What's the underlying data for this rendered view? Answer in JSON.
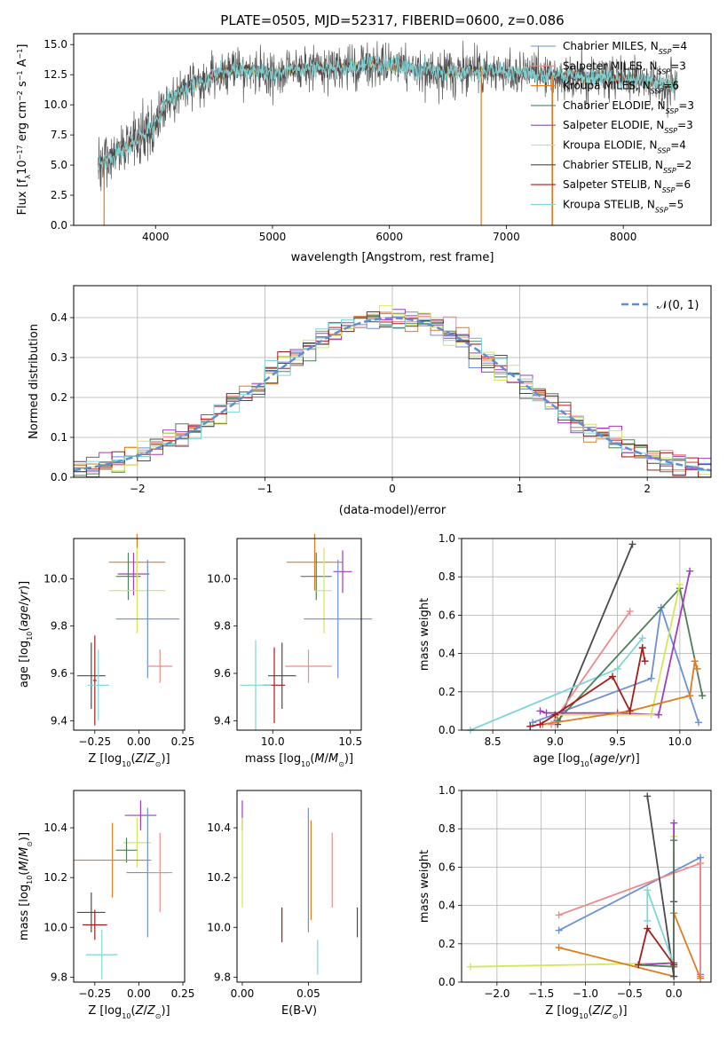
{
  "chart_data": [
    {
      "id": "spectrum",
      "type": "line",
      "title": "PLATE=0505, MJD=52317, FIBERID=0600, z=0.086",
      "xlabel": "wavelength [Angstrom, rest frame]",
      "ylabel": "Flux [f_λ10^-17 erg cm^-2 s^-1 A^-1]",
      "xlim": [
        3300,
        8750
      ],
      "ylim": [
        0,
        15.9
      ],
      "xticks": [
        4000,
        5000,
        6000,
        7000,
        8000
      ],
      "yticks": [
        0.0,
        2.5,
        5.0,
        7.5,
        10.0,
        12.5,
        15.0
      ],
      "x_range": [
        3510,
        8460
      ],
      "legend_position": "top-right",
      "series": [
        {
          "name": "Chabrier MILES, N_SSP=4",
          "color": "#6c8fd5",
          "dataset": "MILES"
        },
        {
          "name": "Salpeter MILES, N_SSP=3",
          "color": "#ee8a8a",
          "dataset": "MILES"
        },
        {
          "name": "Kroupa MILES, N_SSP=6",
          "color": "#e07b20",
          "dataset": "MILES"
        },
        {
          "name": "Chabrier ELODIE, N_SSP=3",
          "color": "#4f7e5a",
          "dataset": "ELODIE"
        },
        {
          "name": "Salpeter ELODIE, N_SSP=3",
          "color": "#a13bc0",
          "dataset": "ELODIE"
        },
        {
          "name": "Kroupa ELODIE, N_SSP=4",
          "color": "#d4e65a",
          "dataset": "ELODIE"
        },
        {
          "name": "Chabrier STELIB, N_SSP=2",
          "color": "#4a4a4a",
          "dataset": "STELIB"
        },
        {
          "name": "Salpeter STELIB, N_SSP=6",
          "color": "#a61c1c",
          "dataset": "STELIB"
        },
        {
          "name": "Kroupa STELIB, N_SSP=5",
          "color": "#7fd6d6",
          "dataset": "STELIB"
        }
      ],
      "continuum": {
        "x": [
          3510,
          3700,
          3900,
          4000,
          4100,
          4300,
          4500,
          4800,
          5000,
          5300,
          5600,
          5900,
          6200,
          6500,
          6800,
          7100,
          7400,
          7700,
          8000,
          8200,
          8460
        ],
        "y": [
          5.0,
          6.2,
          7.5,
          8.3,
          10.4,
          11.6,
          12.5,
          12.9,
          12.6,
          13.0,
          13.1,
          13.4,
          13.0,
          12.7,
          12.8,
          12.6,
          12.4,
          12.3,
          12.2,
          11.9,
          11.6
        ]
      },
      "spikes": [
        {
          "x": 3560,
          "y0": 0.0,
          "color": "#e07b20"
        },
        {
          "x": 6785,
          "y0": 0.0,
          "color": "#e07b20"
        },
        {
          "x": 7390,
          "y0": 0.0,
          "color": "#ee8a8a"
        },
        {
          "x": 7395,
          "y0": 0.0,
          "color": "#e07b20"
        }
      ]
    },
    {
      "id": "residuals",
      "type": "histogram",
      "xlabel": "(data-model)/error",
      "ylabel": "Normed distribution",
      "xlim": [
        -2.5,
        2.5
      ],
      "ylim": [
        0,
        0.48
      ],
      "xticks": [
        -2,
        -1,
        0,
        1,
        2
      ],
      "yticks": [
        0.0,
        0.1,
        0.2,
        0.3,
        0.4
      ],
      "grid": true,
      "bin_width": 0.1,
      "legend": "𝒩(0, 1)",
      "legend_position": "top-right",
      "gaussian_color": "#5e8ed6",
      "series_colors": [
        "#6c8fd5",
        "#ee8a8a",
        "#e07b20",
        "#4f7e5a",
        "#a13bc0",
        "#d4e65a",
        "#4a4a4a",
        "#a61c1c",
        "#7fd6d6"
      ]
    },
    {
      "id": "age-vs-Z",
      "type": "errorbar",
      "xlabel": "Z [log10(Z/Z⊙)]",
      "ylabel": "age  [log10(age/yr)]",
      "xlim": [
        -0.37,
        0.26
      ],
      "ylim": [
        9.36,
        10.17
      ],
      "xticks": [
        -0.25,
        0.0,
        0.25
      ],
      "xticklabels": [
        "−0.25",
        "0.00",
        "0.25"
      ],
      "yticks": [
        9.4,
        9.6,
        9.8,
        10.0
      ],
      "points": [
        {
          "x": -0.01,
          "xerr": 0.16,
          "y": 10.07,
          "yerr": 0.12,
          "color": "#e07b20"
        },
        {
          "x": -0.03,
          "xerr": 0.09,
          "y": 10.02,
          "yerr": 0.09,
          "color": "#a13bc0"
        },
        {
          "x": -0.06,
          "xerr": 0.07,
          "y": 10.01,
          "yerr": 0.1,
          "color": "#4f7e5a"
        },
        {
          "x": -0.01,
          "xerr": 0.16,
          "y": 9.95,
          "yerr": 0.18,
          "color": "#d4e65a"
        },
        {
          "x": 0.05,
          "xerr": 0.18,
          "y": 9.83,
          "yerr": 0.25,
          "color": "#6c8fd5"
        },
        {
          "x": 0.12,
          "xerr": 0.07,
          "y": 9.63,
          "yerr": 0.07,
          "color": "#ee8a8a"
        },
        {
          "x": -0.27,
          "xerr": 0.08,
          "y": 9.59,
          "yerr": 0.14,
          "color": "#4a4a4a"
        },
        {
          "x": -0.25,
          "xerr": 0.01,
          "y": 9.57,
          "yerr": 0.19,
          "color": "#a61c1c"
        },
        {
          "x": -0.23,
          "xerr": 0.06,
          "y": 9.55,
          "yerr": 0.15,
          "color": "#7fd6d6"
        }
      ]
    },
    {
      "id": "age-vs-mass",
      "type": "errorbar",
      "xlabel": "mass [log10(M/M⊙)]",
      "ylabel": "",
      "xlim": [
        9.77,
        10.57
      ],
      "ylim": [
        9.36,
        10.17
      ],
      "xticks": [
        10.0,
        10.5
      ],
      "yticks": [
        9.4,
        9.6,
        9.8,
        10.0
      ],
      "points": [
        {
          "x": 10.27,
          "xerr": 0.18,
          "y": 10.07,
          "yerr": 0.12,
          "color": "#e07b20"
        },
        {
          "x": 10.45,
          "xerr": 0.06,
          "y": 10.03,
          "yerr": 0.09,
          "color": "#a13bc0"
        },
        {
          "x": 10.28,
          "xerr": 0.1,
          "y": 10.01,
          "yerr": 0.1,
          "color": "#4f7e5a"
        },
        {
          "x": 10.33,
          "xerr": 0.05,
          "y": 9.95,
          "yerr": 0.18,
          "color": "#d4e65a"
        },
        {
          "x": 10.42,
          "xerr": 0.22,
          "y": 9.83,
          "yerr": 0.25,
          "color": "#6c8fd5"
        },
        {
          "x": 10.23,
          "xerr": 0.15,
          "y": 9.63,
          "yerr": 0.07,
          "color": "#ee8a8a"
        },
        {
          "x": 10.06,
          "xerr": 0.09,
          "y": 9.59,
          "yerr": 0.14,
          "color": "#4a4a4a"
        },
        {
          "x": 10.01,
          "xerr": 0.07,
          "y": 9.55,
          "yerr": 0.16,
          "color": "#a61c1c"
        },
        {
          "x": 9.89,
          "xerr": 0.1,
          "y": 9.55,
          "yerr": 0.19,
          "color": "#7fd6d6"
        }
      ]
    },
    {
      "id": "mass-weight-vs-age",
      "type": "line",
      "xlabel": "age  [log10(age/yr)]",
      "ylabel": "mass weight",
      "xlim": [
        8.25,
        10.25
      ],
      "ylim": [
        0.0,
        1.0
      ],
      "xticks": [
        8.5,
        9.0,
        9.5,
        10.0
      ],
      "yticks": [
        0.0,
        0.2,
        0.4,
        0.6,
        0.8,
        1.0
      ],
      "grid": true,
      "series": [
        {
          "color": "#4a4a4a",
          "x": [
            9.02,
            9.62
          ],
          "y": [
            0.03,
            0.97
          ]
        },
        {
          "color": "#ee8a8a",
          "x": [
            8.97,
            9.6
          ],
          "y": [
            0.03,
            0.62
          ]
        },
        {
          "color": "#6c8fd5",
          "x": [
            8.82,
            9.77,
            9.85,
            10.15
          ],
          "y": [
            0.04,
            0.27,
            0.64,
            0.04
          ]
        },
        {
          "color": "#7fd6d6",
          "x": [
            8.32,
            9.5,
            9.7
          ],
          "y": [
            0.0,
            0.32,
            0.48
          ]
        },
        {
          "color": "#4f7e5a",
          "x": [
            9.02,
            10.0,
            10.18
          ],
          "y": [
            0.05,
            0.74,
            0.18
          ]
        },
        {
          "color": "#a13bc0",
          "x": [
            8.88,
            8.93,
            9.5,
            9.83,
            10.08
          ],
          "y": [
            0.1,
            0.09,
            0.09,
            0.08,
            0.83
          ]
        },
        {
          "color": "#d4e65a",
          "x": [
            9.0,
            9.77,
            10.0
          ],
          "y": [
            0.08,
            0.08,
            0.76
          ]
        },
        {
          "color": "#e07b20",
          "x": [
            8.9,
            9.6,
            10.08,
            10.12,
            10.14
          ],
          "y": [
            0.03,
            0.1,
            0.18,
            0.36,
            0.32
          ]
        },
        {
          "color": "#a61c1c",
          "x": [
            8.8,
            8.88,
            9.0,
            9.46,
            9.6,
            9.7,
            9.72
          ],
          "y": [
            0.02,
            0.03,
            0.08,
            0.28,
            0.1,
            0.43,
            0.36
          ]
        }
      ]
    },
    {
      "id": "mass-vs-Z",
      "type": "errorbar",
      "xlabel": "Z [log10(Z/Z⊙)]",
      "ylabel": "mass [log10(M/M⊙)]",
      "xlim": [
        -0.37,
        0.26
      ],
      "ylim": [
        9.78,
        10.55
      ],
      "xticks": [
        -0.25,
        0.0,
        0.25
      ],
      "xticklabels": [
        "−0.25",
        "0.00",
        "0.25"
      ],
      "yticks": [
        9.8,
        10.0,
        10.2,
        10.4
      ],
      "points": [
        {
          "x": 0.01,
          "xerr": 0.09,
          "y": 10.45,
          "yerr": 0.06,
          "color": "#a13bc0"
        },
        {
          "x": -0.01,
          "xerr": 0.08,
          "y": 10.34,
          "yerr": 0.1,
          "color": "#d4e65a"
        },
        {
          "x": -0.07,
          "xerr": 0.06,
          "y": 10.31,
          "yerr": 0.05,
          "color": "#4f7e5a"
        },
        {
          "x": -0.15,
          "xerr": 0.22,
          "y": 10.27,
          "yerr": 0.15,
          "color": "#e07b20"
        },
        {
          "x": 0.05,
          "xerr": 0.12,
          "y": 10.22,
          "yerr": 0.26,
          "color": "#6c8fd5"
        },
        {
          "x": 0.12,
          "xerr": 0.07,
          "y": 10.22,
          "yerr": 0.16,
          "color": "#ee8a8a"
        },
        {
          "x": -0.27,
          "xerr": 0.08,
          "y": 10.06,
          "yerr": 0.08,
          "color": "#4a4a4a"
        },
        {
          "x": -0.25,
          "xerr": 0.07,
          "y": 10.01,
          "yerr": 0.06,
          "color": "#a61c1c"
        },
        {
          "x": -0.21,
          "xerr": 0.09,
          "y": 9.89,
          "yerr": 0.1,
          "color": "#7fd6d6"
        }
      ]
    },
    {
      "id": "mass-vs-EBV",
      "type": "errorbar",
      "xlabel": "E(B-V)",
      "ylabel": "",
      "xlim": [
        -0.004,
        0.09
      ],
      "ylim": [
        9.78,
        10.55
      ],
      "xticks": [
        0.0,
        0.05
      ],
      "xticklabels": [
        "0.00",
        "0.05"
      ],
      "yticks": [
        9.8,
        10.0,
        10.2,
        10.4
      ],
      "points": [
        {
          "x": 0.0,
          "xerr": 0.0,
          "y": 10.45,
          "yerr": 0.06,
          "color": "#a13bc0"
        },
        {
          "x": 0.0,
          "xerr": 0.0,
          "y": 10.26,
          "yerr": 0.18,
          "color": "#d4e65a"
        },
        {
          "x": 0.05,
          "xerr": 0.0,
          "y": 10.23,
          "yerr": 0.25,
          "color": "#6c8fd5"
        },
        {
          "x": 0.052,
          "xerr": 0.0,
          "y": 10.23,
          "yerr": 0.2,
          "color": "#e07b20"
        },
        {
          "x": 0.068,
          "xerr": 0.0,
          "y": 10.23,
          "yerr": 0.15,
          "color": "#ee8a8a"
        },
        {
          "x": 0.03,
          "xerr": 0.0,
          "y": 10.01,
          "yerr": 0.07,
          "color": "#a61c1c"
        },
        {
          "x": 0.087,
          "xerr": 0.0,
          "y": 10.02,
          "yerr": 0.06,
          "color": "#4a4a4a"
        },
        {
          "x": 0.057,
          "xerr": 0.0,
          "y": 9.88,
          "yerr": 0.07,
          "color": "#7fd6d6"
        }
      ]
    },
    {
      "id": "mass-weight-vs-Z",
      "type": "line",
      "xlabel": "Z [log10(Z/Z⊙)]",
      "ylabel": "mass weight",
      "xlim": [
        -2.4,
        0.42
      ],
      "ylim": [
        0.0,
        1.0
      ],
      "xticks": [
        -2.0,
        -1.5,
        -1.0,
        -0.5,
        0.0
      ],
      "xticklabels": [
        "−2.0",
        "−1.5",
        "−1.0",
        "−0.5",
        "0.0"
      ],
      "yticks": [
        0.0,
        0.2,
        0.4,
        0.6,
        0.8,
        1.0
      ],
      "grid": true,
      "series": [
        {
          "color": "#d4e65a",
          "x": [
            -2.3,
            0.0,
            0.0
          ],
          "y": [
            0.08,
            0.1,
            0.76
          ]
        },
        {
          "color": "#6c8fd5",
          "x": [
            -1.3,
            0.3,
            0.3
          ],
          "y": [
            0.27,
            0.65,
            0.04
          ]
        },
        {
          "color": "#ee8a8a",
          "x": [
            -1.3,
            0.3,
            0.3
          ],
          "y": [
            0.35,
            0.62,
            0.03
          ]
        },
        {
          "color": "#e07b20",
          "x": [
            -1.3,
            0.0,
            0.0,
            0.3
          ],
          "y": [
            0.18,
            0.03,
            0.36,
            0.02
          ]
        },
        {
          "color": "#4a4a4a",
          "x": [
            -0.3,
            0.0,
            0.0
          ],
          "y": [
            0.97,
            0.03,
            0.42
          ]
        },
        {
          "color": "#a13bc0",
          "x": [
            -0.4,
            0.0,
            0.0
          ],
          "y": [
            0.09,
            0.1,
            0.83
          ]
        },
        {
          "color": "#7fd6d6",
          "x": [
            -0.3,
            -0.3,
            0.0
          ],
          "y": [
            0.32,
            0.48,
            0.09
          ]
        },
        {
          "color": "#4f7e5a",
          "x": [
            -0.4,
            0.0,
            0.0
          ],
          "y": [
            0.09,
            0.08,
            0.74
          ]
        },
        {
          "color": "#a61c1c",
          "x": [
            -0.4,
            -0.3,
            0.0
          ],
          "y": [
            0.09,
            0.28,
            0.09
          ]
        }
      ]
    }
  ]
}
